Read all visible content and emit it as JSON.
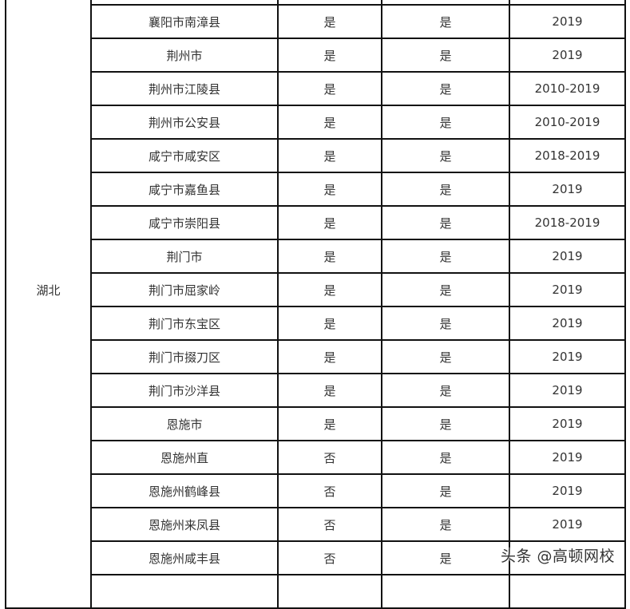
{
  "province": "湖北",
  "rows": [
    {
      "region": "",
      "c1": "",
      "c2": "",
      "year": ""
    },
    {
      "region": "襄阳市南漳县",
      "c1": "是",
      "c2": "是",
      "year": "2019"
    },
    {
      "region": "荆州市",
      "c1": "是",
      "c2": "是",
      "year": "2019"
    },
    {
      "region": "荆州市江陵县",
      "c1": "是",
      "c2": "是",
      "year": "2010-2019"
    },
    {
      "region": "荆州市公安县",
      "c1": "是",
      "c2": "是",
      "year": "2010-2019"
    },
    {
      "region": "咸宁市咸安区",
      "c1": "是",
      "c2": "是",
      "year": "2018-2019"
    },
    {
      "region": "咸宁市嘉鱼县",
      "c1": "是",
      "c2": "是",
      "year": "2019"
    },
    {
      "region": "咸宁市崇阳县",
      "c1": "是",
      "c2": "是",
      "year": "2018-2019"
    },
    {
      "region": "荆门市",
      "c1": "是",
      "c2": "是",
      "year": "2019"
    },
    {
      "region": "荆门市屈家岭",
      "c1": "是",
      "c2": "是",
      "year": "2019"
    },
    {
      "region": "荆门市东宝区",
      "c1": "是",
      "c2": "是",
      "year": "2019"
    },
    {
      "region": "荆门市掇刀区",
      "c1": "是",
      "c2": "是",
      "year": "2019"
    },
    {
      "region": "荆门市沙洋县",
      "c1": "是",
      "c2": "是",
      "year": "2019"
    },
    {
      "region": "恩施市",
      "c1": "是",
      "c2": "是",
      "year": "2019"
    },
    {
      "region": "恩施州直",
      "c1": "否",
      "c2": "是",
      "year": "2019"
    },
    {
      "region": "恩施州鹤峰县",
      "c1": "否",
      "c2": "是",
      "year": "2019"
    },
    {
      "region": "恩施州来凤县",
      "c1": "否",
      "c2": "是",
      "year": "2019"
    },
    {
      "region": "恩施州咸丰县",
      "c1": "否",
      "c2": "是",
      "year": ""
    },
    {
      "region": "",
      "c1": "",
      "c2": "",
      "year": ""
    }
  ],
  "watermark": "头条 @高顿网校"
}
